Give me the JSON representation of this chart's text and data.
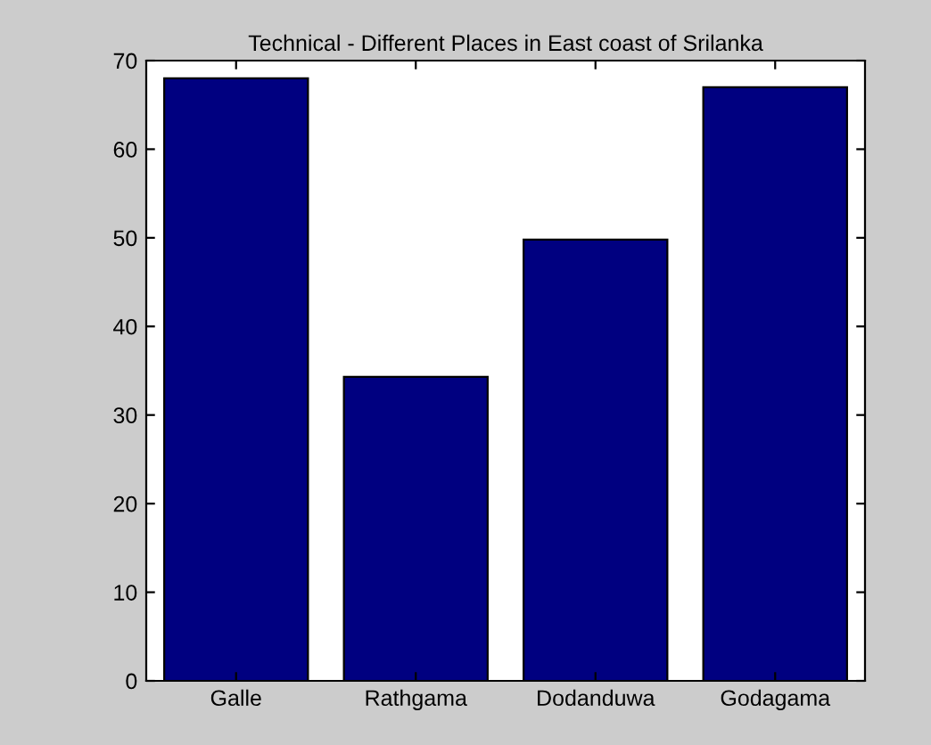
{
  "chart_data": {
    "type": "bar",
    "title": "Technical - Different Places in East coast of Srilanka",
    "categories": [
      "Galle",
      "Rathgama",
      "Dodanduwa",
      "Godagama"
    ],
    "values": [
      68,
      34.3,
      49.8,
      67
    ],
    "color": "#000080",
    "ylim": [
      0,
      70
    ],
    "yticks": [
      0,
      10,
      20,
      30,
      40,
      50,
      60,
      70
    ],
    "grid": false
  }
}
